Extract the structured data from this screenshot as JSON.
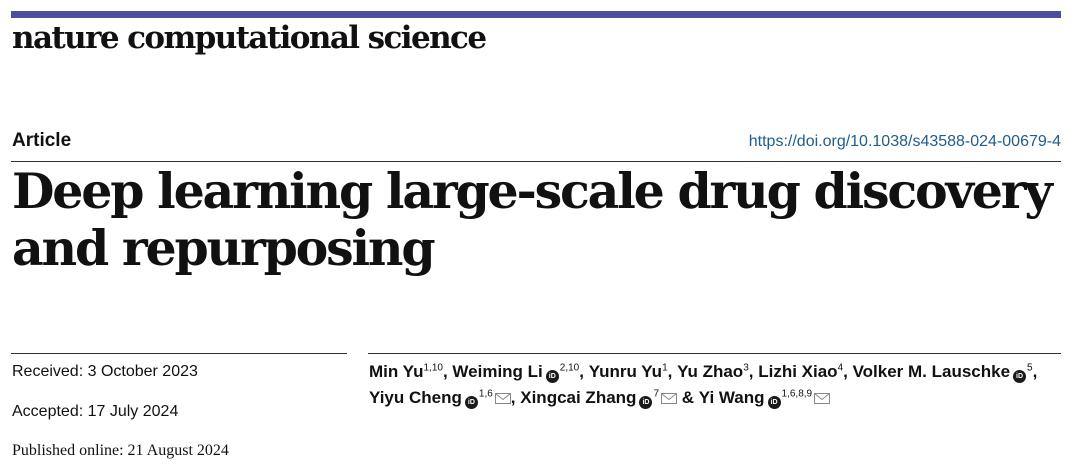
{
  "header": {
    "journal_name": "nature computational science",
    "bar_color": "#4b4f9e"
  },
  "article": {
    "type_label": "Article",
    "doi": "https://doi.org/10.1038/s43588-024-00679-4",
    "title": "Deep learning large-scale drug discovery and repurposing"
  },
  "dates": {
    "received": "Received: 3 October 2023",
    "accepted": "Accepted: 17 July 2024",
    "published": "Published online: 21 August 2024"
  },
  "authors": [
    {
      "name": "Min Yu",
      "affil": "1,10",
      "orcid": false,
      "corresponding": false,
      "sep": ", "
    },
    {
      "name": "Weiming Li",
      "affil": "2,10",
      "orcid": true,
      "corresponding": false,
      "sep": ", "
    },
    {
      "name": "Yunru Yu",
      "affil": "1",
      "orcid": false,
      "corresponding": false,
      "sep": ", "
    },
    {
      "name": "Yu Zhao",
      "affil": "3",
      "orcid": false,
      "corresponding": false,
      "sep": ", "
    },
    {
      "name": "Lizhi Xiao",
      "affil": "4",
      "orcid": false,
      "corresponding": false,
      "sep": ", "
    },
    {
      "name": "Volker M. Lauschke",
      "affil": "5",
      "orcid": true,
      "corresponding": false,
      "sep": ", "
    },
    {
      "name": "Yiyu Cheng",
      "affil": "1,6",
      "orcid": true,
      "corresponding": true,
      "sep": ", "
    },
    {
      "name": "Xingcai Zhang",
      "affil": "7",
      "orcid": true,
      "corresponding": true,
      "sep": " & "
    },
    {
      "name": "Yi Wang",
      "affil": "1,6,8,9",
      "orcid": true,
      "corresponding": true,
      "sep": ""
    }
  ],
  "icons": {
    "orcid": "orcid-icon",
    "mail": "envelope-icon"
  },
  "colors": {
    "doi_link": "#1f5d8a"
  }
}
